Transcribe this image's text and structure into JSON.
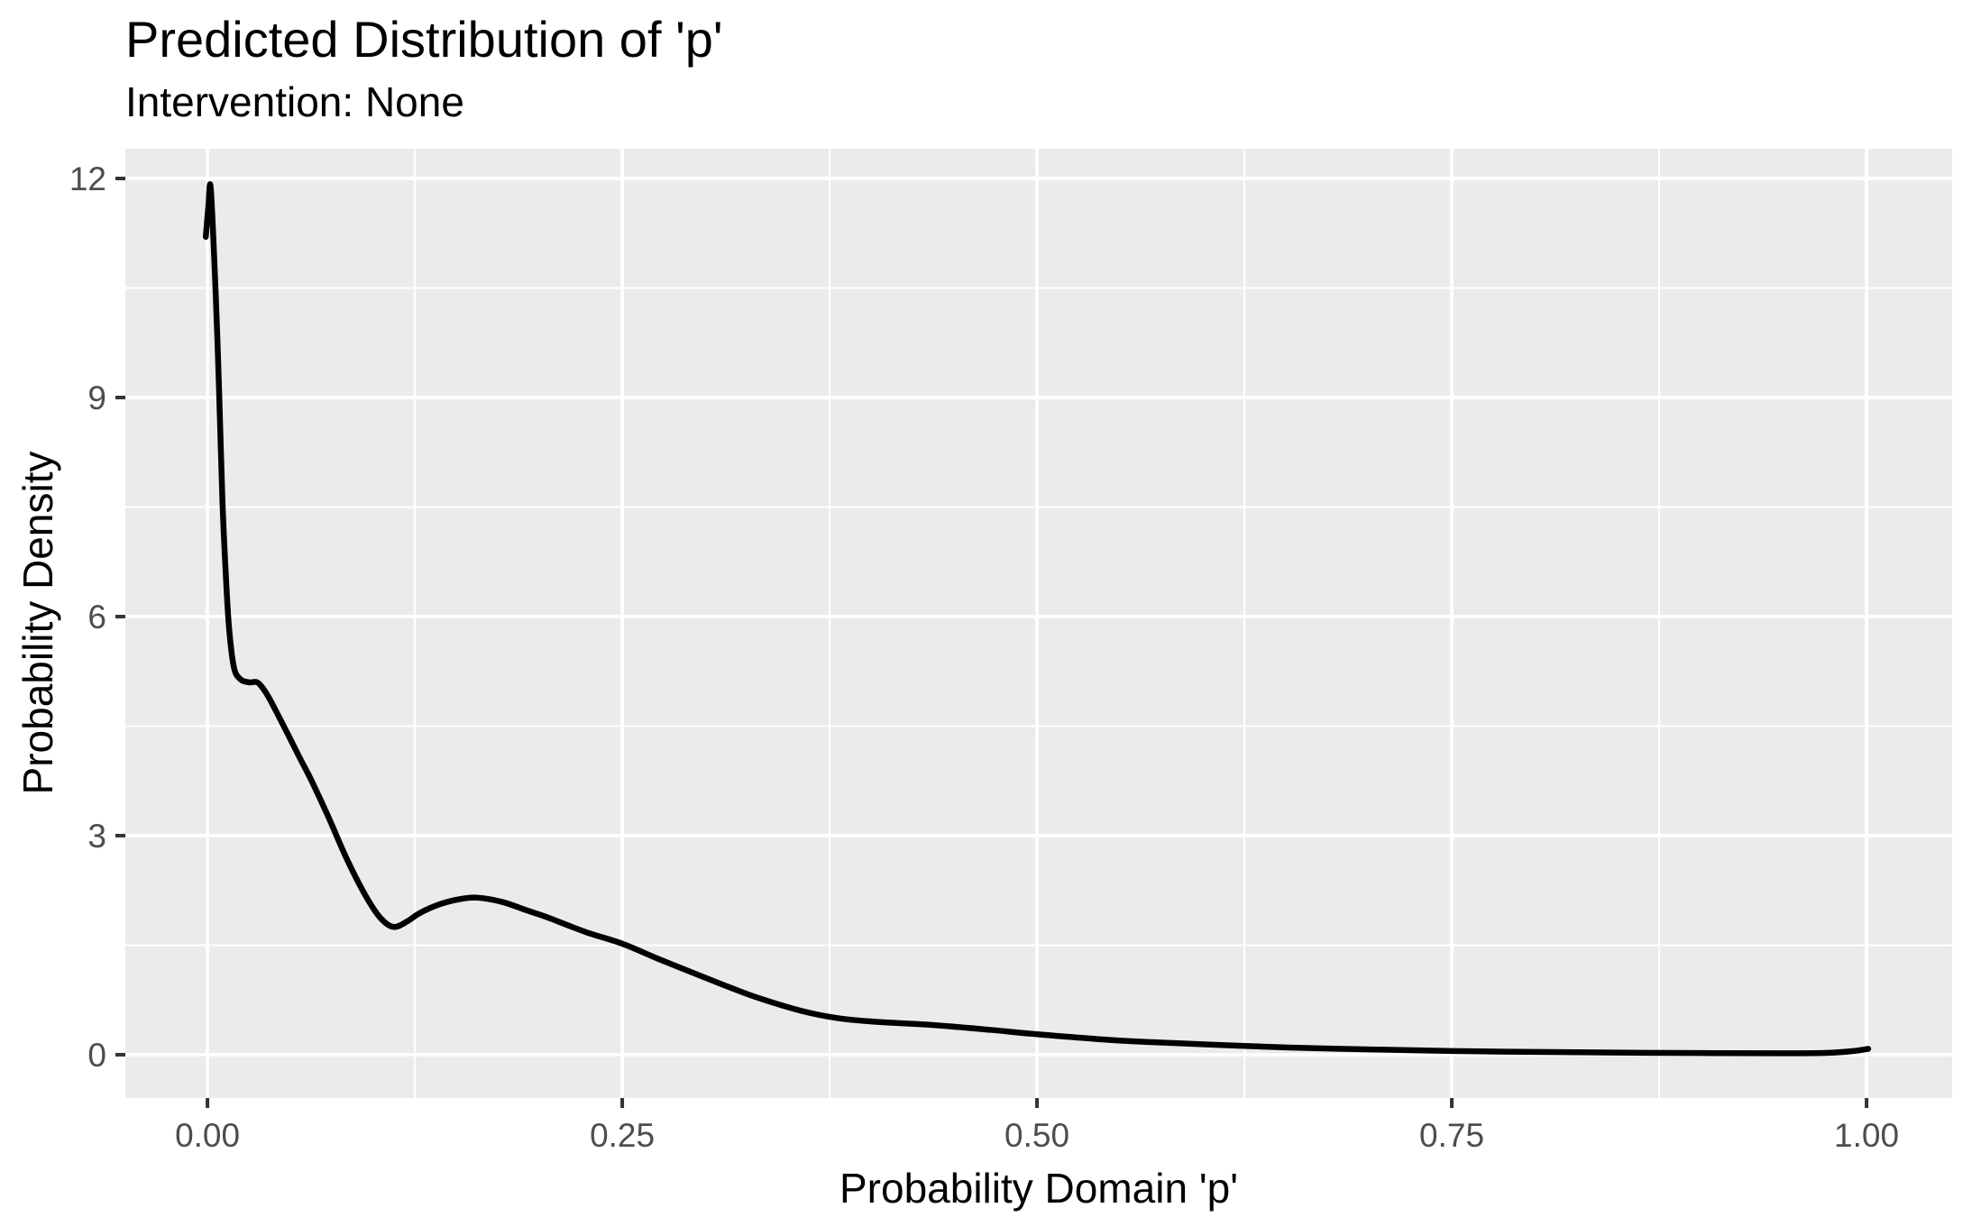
{
  "header": {
    "title": "Predicted Distribution of 'p'",
    "subtitle": "Intervention: None"
  },
  "chart_data": {
    "type": "line",
    "title": "Predicted Distribution of 'p'",
    "subtitle": "Intervention: None",
    "xlabel": "Probability Domain 'p'",
    "ylabel": "Probability Density",
    "legend": "none",
    "grid": "on",
    "xlim": [
      -0.0495,
      1.0516
    ],
    "ylim": [
      -0.593,
      12.407
    ],
    "x_ticks": {
      "values": [
        0,
        0.25,
        0.5,
        0.75,
        1.0
      ],
      "labels": [
        "0.00",
        "0.25",
        "0.50",
        "0.75",
        "1.00"
      ]
    },
    "y_ticks": {
      "values": [
        0,
        3,
        6,
        9,
        12
      ],
      "labels": [
        "0",
        "3",
        "6",
        "9",
        "12"
      ]
    },
    "x_minor": [
      0.125,
      0.375,
      0.625,
      0.875
    ],
    "y_minor": [
      1.5,
      4.5,
      7.5,
      10.5
    ],
    "colors": {
      "background": "#FFFFFF",
      "panel_bg": "#EBEBEB",
      "grid_major": "#FFFFFF",
      "grid_minor": "#FFFFFF",
      "axis_text": "#4D4D4D",
      "tick_mark": "#333333",
      "title_text": "#000000",
      "curve": "#000000"
    },
    "series": [
      {
        "name": "predicted-density-of-p",
        "color": "#000000",
        "points": [
          [
            -0.001,
            11.2
          ],
          [
            0.0005,
            11.6
          ],
          [
            0.002,
            11.86
          ],
          [
            0.005,
            10.4
          ],
          [
            0.007,
            9.1
          ],
          [
            0.009,
            7.6
          ],
          [
            0.011,
            6.6
          ],
          [
            0.013,
            5.85
          ],
          [
            0.016,
            5.3
          ],
          [
            0.02,
            5.14
          ],
          [
            0.025,
            5.1
          ],
          [
            0.03,
            5.1
          ],
          [
            0.034,
            5.0
          ],
          [
            0.038,
            4.85
          ],
          [
            0.048,
            4.41
          ],
          [
            0.056,
            4.05
          ],
          [
            0.063,
            3.74
          ],
          [
            0.073,
            3.25
          ],
          [
            0.084,
            2.68
          ],
          [
            0.095,
            2.19
          ],
          [
            0.104,
            1.88
          ],
          [
            0.112,
            1.75
          ],
          [
            0.12,
            1.82
          ],
          [
            0.128,
            1.94
          ],
          [
            0.14,
            2.06
          ],
          [
            0.152,
            2.13
          ],
          [
            0.163,
            2.15
          ],
          [
            0.178,
            2.09
          ],
          [
            0.192,
            1.98
          ],
          [
            0.205,
            1.88
          ],
          [
            0.228,
            1.68
          ],
          [
            0.25,
            1.52
          ],
          [
            0.272,
            1.31
          ],
          [
            0.295,
            1.1
          ],
          [
            0.315,
            0.92
          ],
          [
            0.333,
            0.77
          ],
          [
            0.358,
            0.6
          ],
          [
            0.38,
            0.5
          ],
          [
            0.403,
            0.45
          ],
          [
            0.435,
            0.41
          ],
          [
            0.472,
            0.34
          ],
          [
            0.5,
            0.28
          ],
          [
            0.545,
            0.2
          ],
          [
            0.582,
            0.16
          ],
          [
            0.625,
            0.12
          ],
          [
            0.665,
            0.09
          ],
          [
            0.705,
            0.07
          ],
          [
            0.75,
            0.05
          ],
          [
            0.8,
            0.038
          ],
          [
            0.85,
            0.029
          ],
          [
            0.9,
            0.022
          ],
          [
            0.945,
            0.019
          ],
          [
            0.975,
            0.024
          ],
          [
            0.992,
            0.05
          ],
          [
            1.001,
            0.08
          ]
        ]
      }
    ]
  }
}
